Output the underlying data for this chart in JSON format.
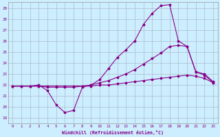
{
  "xlabel": "Windchill (Refroidissement éolien,°C)",
  "ylabel": "",
  "background_color": "#cceeff",
  "grid_color": "#aabbcc",
  "line_color": "#880088",
  "xlim": [
    -0.5,
    23.5
  ],
  "ylim": [
    18.5,
    29.5
  ],
  "yticks": [
    19,
    20,
    21,
    22,
    23,
    24,
    25,
    26,
    27,
    28,
    29
  ],
  "xticks": [
    0,
    1,
    2,
    3,
    4,
    5,
    6,
    7,
    8,
    9,
    10,
    11,
    12,
    13,
    14,
    15,
    16,
    17,
    18,
    19,
    20,
    21,
    22,
    23
  ],
  "line1_x": [
    0,
    1,
    2,
    3,
    4,
    5,
    6,
    7,
    8,
    9,
    10,
    11,
    12,
    13,
    14,
    15,
    16,
    17,
    18,
    19,
    20,
    21,
    22,
    23
  ],
  "line1_y": [
    21.9,
    21.9,
    21.9,
    22.0,
    21.5,
    20.2,
    19.5,
    19.7,
    21.8,
    22.0,
    22.5,
    23.5,
    24.5,
    25.2,
    26.0,
    27.5,
    28.5,
    29.2,
    29.3,
    26.0,
    25.5,
    23.2,
    23.0,
    22.3
  ],
  "line2_x": [
    0,
    1,
    2,
    3,
    4,
    5,
    6,
    7,
    8,
    9,
    10,
    11,
    12,
    13,
    14,
    15,
    16,
    17,
    18,
    19,
    20,
    21,
    22,
    23
  ],
  "line2_y": [
    21.9,
    21.9,
    21.9,
    21.9,
    21.8,
    21.8,
    21.8,
    21.8,
    21.9,
    22.0,
    22.2,
    22.4,
    22.7,
    23.0,
    23.4,
    23.9,
    24.4,
    24.9,
    25.5,
    25.6,
    25.5,
    23.2,
    22.9,
    22.2
  ],
  "line3_x": [
    0,
    1,
    2,
    3,
    4,
    5,
    6,
    7,
    8,
    9,
    10,
    11,
    12,
    13,
    14,
    15,
    16,
    17,
    18,
    19,
    20,
    21,
    22,
    23
  ],
  "line3_y": [
    21.9,
    21.9,
    21.9,
    21.9,
    21.9,
    21.9,
    21.9,
    21.9,
    21.9,
    21.9,
    22.0,
    22.0,
    22.1,
    22.2,
    22.3,
    22.4,
    22.5,
    22.6,
    22.7,
    22.8,
    22.9,
    22.8,
    22.6,
    22.2
  ]
}
